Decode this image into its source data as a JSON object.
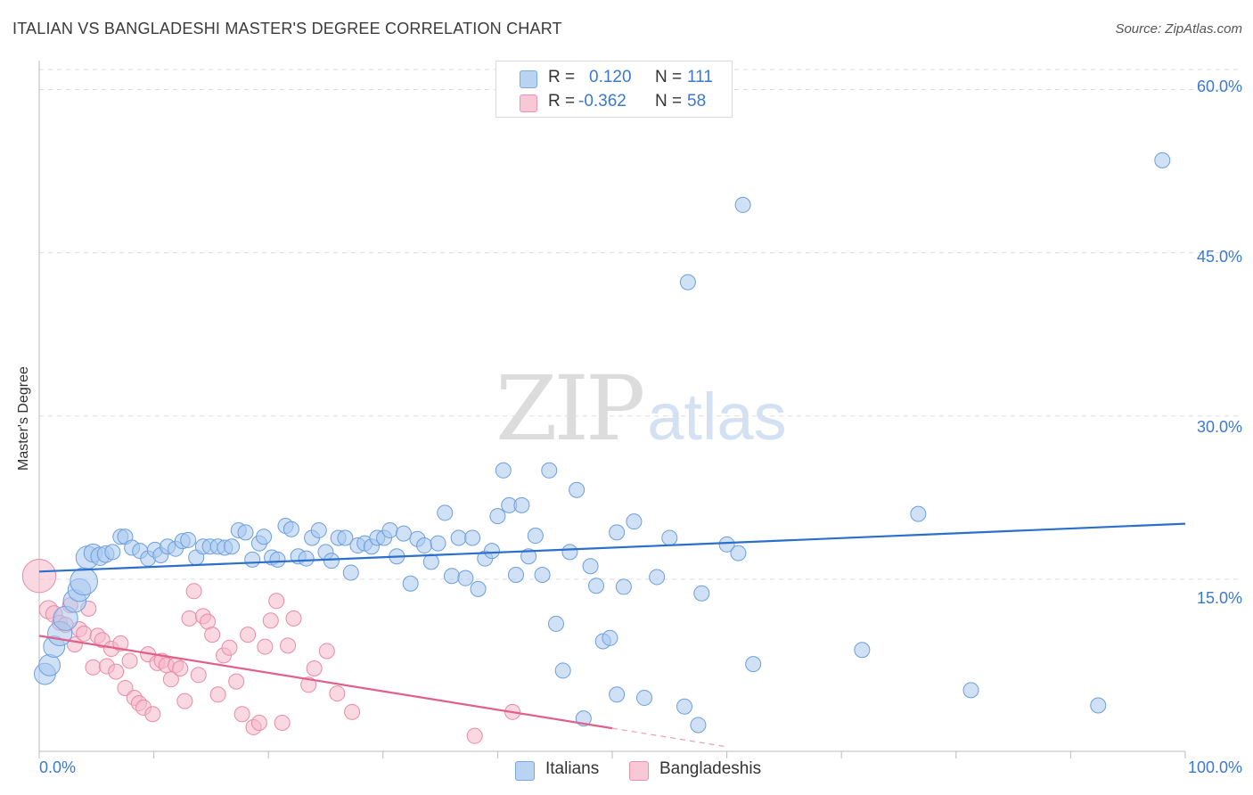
{
  "title": "ITALIAN VS BANGLADESHI MASTER'S DEGREE CORRELATION CHART",
  "source": "Source: ZipAtlas.com",
  "watermark": {
    "zip": "ZIP",
    "atlas": "atlas"
  },
  "legend": {
    "rows": [
      {
        "r_label": "R =",
        "r_value": "0.120",
        "n_label": "N =",
        "n_value": "111"
      },
      {
        "r_label": "R =",
        "r_value": "-0.362",
        "n_label": "N =",
        "n_value": "58"
      }
    ]
  },
  "colors": {
    "italians_fill": "#a9c8ef",
    "italians_stroke": "#6b9fde",
    "italians_line": "#2a6fcc",
    "bangladeshis_fill": "#f5b8cb",
    "bangladeshis_stroke": "#e98aa8",
    "bangladeshis_line": "#e0608a",
    "grid": "#dddddd",
    "tick_text": "#3b79d1"
  },
  "chart_data": {
    "type": "scatter",
    "title": "ITALIAN VS BANGLADESHI MASTER'S DEGREE CORRELATION CHART",
    "xlabel": "",
    "ylabel": "Master's Degree",
    "xlim": [
      0,
      100
    ],
    "ylim": [
      0,
      62.5
    ],
    "x_tick_labels": [
      "0.0%",
      "100.0%"
    ],
    "y_ticks": [
      15,
      30,
      45,
      60
    ],
    "y_tick_labels": [
      "15.0%",
      "30.0%",
      "45.0%",
      "60.0%"
    ],
    "grid": "horizontal dashed",
    "legend_position": "top-center",
    "series": [
      {
        "name": "Italians",
        "r": 0.12,
        "n": 111,
        "trend": [
          [
            0,
            15.7
          ],
          [
            100,
            20.1
          ]
        ],
        "points": [
          [
            0.5,
            6.3,
            1.4
          ],
          [
            0.9,
            7.1,
            1.4
          ],
          [
            1.3,
            8.8,
            1.4
          ],
          [
            1.8,
            10.0,
            1.6
          ],
          [
            2.3,
            11.4,
            1.6
          ],
          [
            3.1,
            13.0,
            1.5
          ],
          [
            3.5,
            14.0,
            1.5
          ],
          [
            3.9,
            14.8,
            1.8
          ],
          [
            4.2,
            17.0,
            1.5
          ],
          [
            4.7,
            17.4,
            1.2
          ],
          [
            5.3,
            17.1,
            1.2
          ],
          [
            5.8,
            17.3,
            1.1
          ],
          [
            6.4,
            17.5,
            1.0
          ],
          [
            7.1,
            18.9,
            1.0
          ],
          [
            7.5,
            18.9,
            1.0
          ],
          [
            8.1,
            17.9,
            1.0
          ],
          [
            8.8,
            17.6,
            1.0
          ],
          [
            9.5,
            16.9,
            1.0
          ],
          [
            10.1,
            17.7,
            1.0
          ],
          [
            10.6,
            17.2,
            1.0
          ],
          [
            11.2,
            18.0,
            1.0
          ],
          [
            11.9,
            17.8,
            1.0
          ],
          [
            12.5,
            18.5,
            1.0
          ],
          [
            13.0,
            18.6,
            1.0
          ],
          [
            13.7,
            17.0,
            1.0
          ],
          [
            14.3,
            18.0,
            1.0
          ],
          [
            14.9,
            18.0,
            1.0
          ],
          [
            15.6,
            18.0,
            1.0
          ],
          [
            16.2,
            17.9,
            1.0
          ],
          [
            16.8,
            18.0,
            1.0
          ],
          [
            17.4,
            19.5,
            1.0
          ],
          [
            18.0,
            19.3,
            1.0
          ],
          [
            18.6,
            16.8,
            1.0
          ],
          [
            19.2,
            18.3,
            1.0
          ],
          [
            19.6,
            18.9,
            1.0
          ],
          [
            20.3,
            17.0,
            1.0
          ],
          [
            20.8,
            16.8,
            1.0
          ],
          [
            21.5,
            19.9,
            1.0
          ],
          [
            22.0,
            19.6,
            1.0
          ],
          [
            22.6,
            17.1,
            1.0
          ],
          [
            23.3,
            16.9,
            1.0
          ],
          [
            23.8,
            18.8,
            1.0
          ],
          [
            24.4,
            19.5,
            1.0
          ],
          [
            25.0,
            17.5,
            1.0
          ],
          [
            25.5,
            16.7,
            1.0
          ],
          [
            26.1,
            18.8,
            1.0
          ],
          [
            26.7,
            18.8,
            1.0
          ],
          [
            27.2,
            15.6,
            1.0
          ],
          [
            27.8,
            18.1,
            1.0
          ],
          [
            28.4,
            18.3,
            1.0
          ],
          [
            29.0,
            18.0,
            1.0
          ],
          [
            29.5,
            18.8,
            1.0
          ],
          [
            30.1,
            18.8,
            1.0
          ],
          [
            30.6,
            19.5,
            1.0
          ],
          [
            31.2,
            17.1,
            1.0
          ],
          [
            31.8,
            19.2,
            1.0
          ],
          [
            32.4,
            14.6,
            1.0
          ],
          [
            33.0,
            18.7,
            1.0
          ],
          [
            33.6,
            18.1,
            1.0
          ],
          [
            34.2,
            16.6,
            1.0
          ],
          [
            34.8,
            18.3,
            1.0
          ],
          [
            35.4,
            21.1,
            1.0
          ],
          [
            36.0,
            15.3,
            1.0
          ],
          [
            36.6,
            18.8,
            1.0
          ],
          [
            37.2,
            15.1,
            1.0
          ],
          [
            37.8,
            18.8,
            1.0
          ],
          [
            38.3,
            14.1,
            1.0
          ],
          [
            38.9,
            16.9,
            1.0
          ],
          [
            39.5,
            17.6,
            1.0
          ],
          [
            40.0,
            20.8,
            1.0
          ],
          [
            40.5,
            25.0,
            1.0
          ],
          [
            41.0,
            21.8,
            1.0
          ],
          [
            41.6,
            15.4,
            1.0
          ],
          [
            42.1,
            21.8,
            1.0
          ],
          [
            42.7,
            17.1,
            1.0
          ],
          [
            43.3,
            19.0,
            1.0
          ],
          [
            43.9,
            15.4,
            1.0
          ],
          [
            44.5,
            25.0,
            1.0
          ],
          [
            45.1,
            10.9,
            1.0
          ],
          [
            45.7,
            6.6,
            1.0
          ],
          [
            46.3,
            17.5,
            1.0
          ],
          [
            46.9,
            23.2,
            1.0
          ],
          [
            47.5,
            2.2,
            1.0
          ],
          [
            48.1,
            16.2,
            1.0
          ],
          [
            48.6,
            14.4,
            1.0
          ],
          [
            49.2,
            9.3,
            1.0
          ],
          [
            49.8,
            9.6,
            1.0
          ],
          [
            50.4,
            4.4,
            1.0
          ],
          [
            50.4,
            19.3,
            1.0
          ],
          [
            51.0,
            14.3,
            1.0
          ],
          [
            51.9,
            20.3,
            1.0
          ],
          [
            52.8,
            4.1,
            1.0
          ],
          [
            53.9,
            15.2,
            1.0
          ],
          [
            55.0,
            18.8,
            1.0
          ],
          [
            56.3,
            3.3,
            1.0
          ],
          [
            56.6,
            42.3,
            1.0
          ],
          [
            57.5,
            1.6,
            1.0
          ],
          [
            57.8,
            13.7,
            1.0
          ],
          [
            60.0,
            18.2,
            1.0
          ],
          [
            61.0,
            17.4,
            1.0
          ],
          [
            61.4,
            49.4,
            1.0
          ],
          [
            62.3,
            7.2,
            1.0
          ],
          [
            71.8,
            8.5,
            1.0
          ],
          [
            76.7,
            21.0,
            1.0
          ],
          [
            81.3,
            4.8,
            1.0
          ],
          [
            92.4,
            3.4,
            1.0
          ],
          [
            98.0,
            53.5,
            1.0
          ]
        ]
      },
      {
        "name": "Bangladeshis",
        "r": -0.362,
        "n": 58,
        "trend": [
          [
            0,
            9.8
          ],
          [
            50,
            1.3
          ]
        ],
        "trend_dashed": [
          [
            50,
            1.3
          ],
          [
            60,
            -0.4
          ]
        ],
        "points": [
          [
            0.0,
            15.3,
            2.2
          ],
          [
            0.8,
            12.2,
            1.2
          ],
          [
            1.3,
            11.8,
            1.1
          ],
          [
            1.8,
            11.0,
            1.0
          ],
          [
            2.3,
            10.8,
            1.0
          ],
          [
            2.7,
            12.6,
            1.0
          ],
          [
            3.1,
            9.0,
            1.0
          ],
          [
            3.5,
            10.4,
            1.0
          ],
          [
            3.9,
            10.0,
            1.0
          ],
          [
            4.3,
            12.3,
            1.0
          ],
          [
            4.7,
            6.9,
            1.0
          ],
          [
            5.1,
            9.8,
            1.0
          ],
          [
            5.5,
            9.4,
            1.0
          ],
          [
            5.9,
            7.0,
            1.0
          ],
          [
            6.3,
            8.6,
            1.0
          ],
          [
            6.7,
            6.5,
            1.0
          ],
          [
            7.1,
            9.1,
            1.0
          ],
          [
            7.5,
            5.0,
            1.0
          ],
          [
            7.9,
            7.5,
            1.0
          ],
          [
            8.3,
            4.1,
            1.0
          ],
          [
            8.7,
            3.6,
            1.0
          ],
          [
            9.1,
            3.2,
            1.0
          ],
          [
            9.5,
            8.1,
            1.0
          ],
          [
            9.9,
            2.6,
            1.0
          ],
          [
            10.3,
            7.3,
            1.0
          ],
          [
            10.7,
            7.5,
            1.0
          ],
          [
            11.1,
            7.1,
            1.0
          ],
          [
            11.5,
            5.8,
            1.0
          ],
          [
            11.9,
            7.1,
            1.0
          ],
          [
            12.3,
            6.8,
            1.0
          ],
          [
            12.7,
            3.8,
            1.0
          ],
          [
            13.1,
            11.4,
            1.0
          ],
          [
            13.5,
            13.9,
            1.0
          ],
          [
            13.9,
            6.2,
            1.0
          ],
          [
            14.3,
            11.6,
            1.0
          ],
          [
            14.7,
            11.1,
            1.0
          ],
          [
            15.1,
            9.9,
            1.0
          ],
          [
            15.6,
            4.4,
            1.0
          ],
          [
            16.1,
            8.0,
            1.0
          ],
          [
            16.6,
            8.7,
            1.0
          ],
          [
            17.2,
            5.6,
            1.0
          ],
          [
            17.7,
            2.6,
            1.0
          ],
          [
            18.2,
            9.9,
            1.0
          ],
          [
            18.7,
            1.4,
            1.0
          ],
          [
            19.2,
            1.8,
            1.0
          ],
          [
            19.7,
            8.8,
            1.0
          ],
          [
            20.2,
            11.2,
            1.0
          ],
          [
            20.7,
            13.0,
            1.0
          ],
          [
            21.2,
            1.8,
            1.0
          ],
          [
            21.7,
            8.9,
            1.0
          ],
          [
            22.2,
            11.4,
            1.0
          ],
          [
            23.5,
            5.3,
            1.0
          ],
          [
            24.0,
            6.8,
            1.0
          ],
          [
            25.1,
            8.4,
            1.0
          ],
          [
            26.0,
            4.5,
            1.0
          ],
          [
            27.3,
            2.8,
            1.0
          ],
          [
            38.0,
            0.6,
            1.0
          ],
          [
            41.3,
            2.8,
            1.0
          ]
        ]
      }
    ]
  },
  "bottom_legend": [
    {
      "label": "Italians"
    },
    {
      "label": "Bangladeshis"
    }
  ]
}
